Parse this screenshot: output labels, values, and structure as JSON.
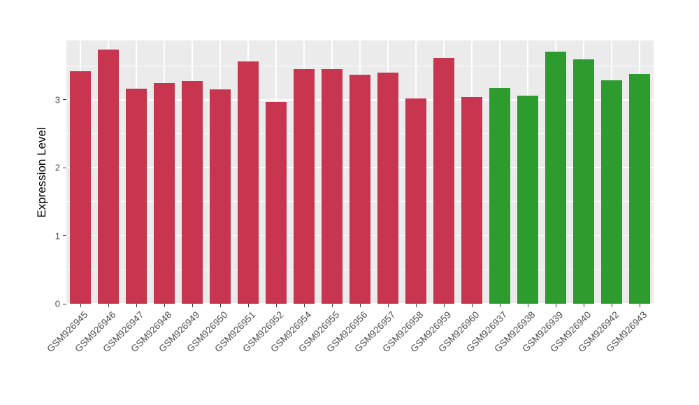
{
  "chart_data": {
    "type": "bar",
    "title": "",
    "ylabel": "Expression Level",
    "xlabel": "",
    "categories": [
      "GSM926945",
      "GSM926946",
      "GSM926947",
      "GSM926948",
      "GSM926949",
      "GSM926950",
      "GSM926951",
      "GSM926952",
      "GSM926954",
      "GSM926955",
      "GSM926956",
      "GSM926957",
      "GSM926958",
      "GSM926959",
      "GSM926960",
      "GSM926937",
      "GSM926938",
      "GSM926939",
      "GSM926940",
      "GSM926942",
      "GSM926943"
    ],
    "values": [
      3.42,
      3.74,
      3.16,
      3.24,
      3.27,
      3.15,
      3.56,
      2.97,
      3.45,
      3.45,
      3.37,
      3.4,
      3.02,
      3.61,
      3.04,
      3.17,
      3.06,
      3.71,
      3.59,
      3.28,
      3.38
    ],
    "groups": [
      "red",
      "red",
      "red",
      "red",
      "red",
      "red",
      "red",
      "red",
      "red",
      "red",
      "red",
      "red",
      "red",
      "red",
      "red",
      "green",
      "green",
      "green",
      "green",
      "green",
      "green"
    ],
    "group_colors": {
      "red": "#C7354F",
      "green": "#2E9B2F"
    },
    "yticks": [
      0,
      1,
      2,
      3
    ],
    "yticks_minor": [
      0.5,
      1.5,
      2.5,
      3.5
    ],
    "ylim": [
      0,
      3.87
    ],
    "grid": true,
    "legend": "none",
    "plot_background": "#EBEBEB",
    "gridline_color": "#FFFFFF",
    "axis_text_color": "#4D4D4D",
    "tick_color": "#333333",
    "bar_width_ratio": 0.75
  }
}
